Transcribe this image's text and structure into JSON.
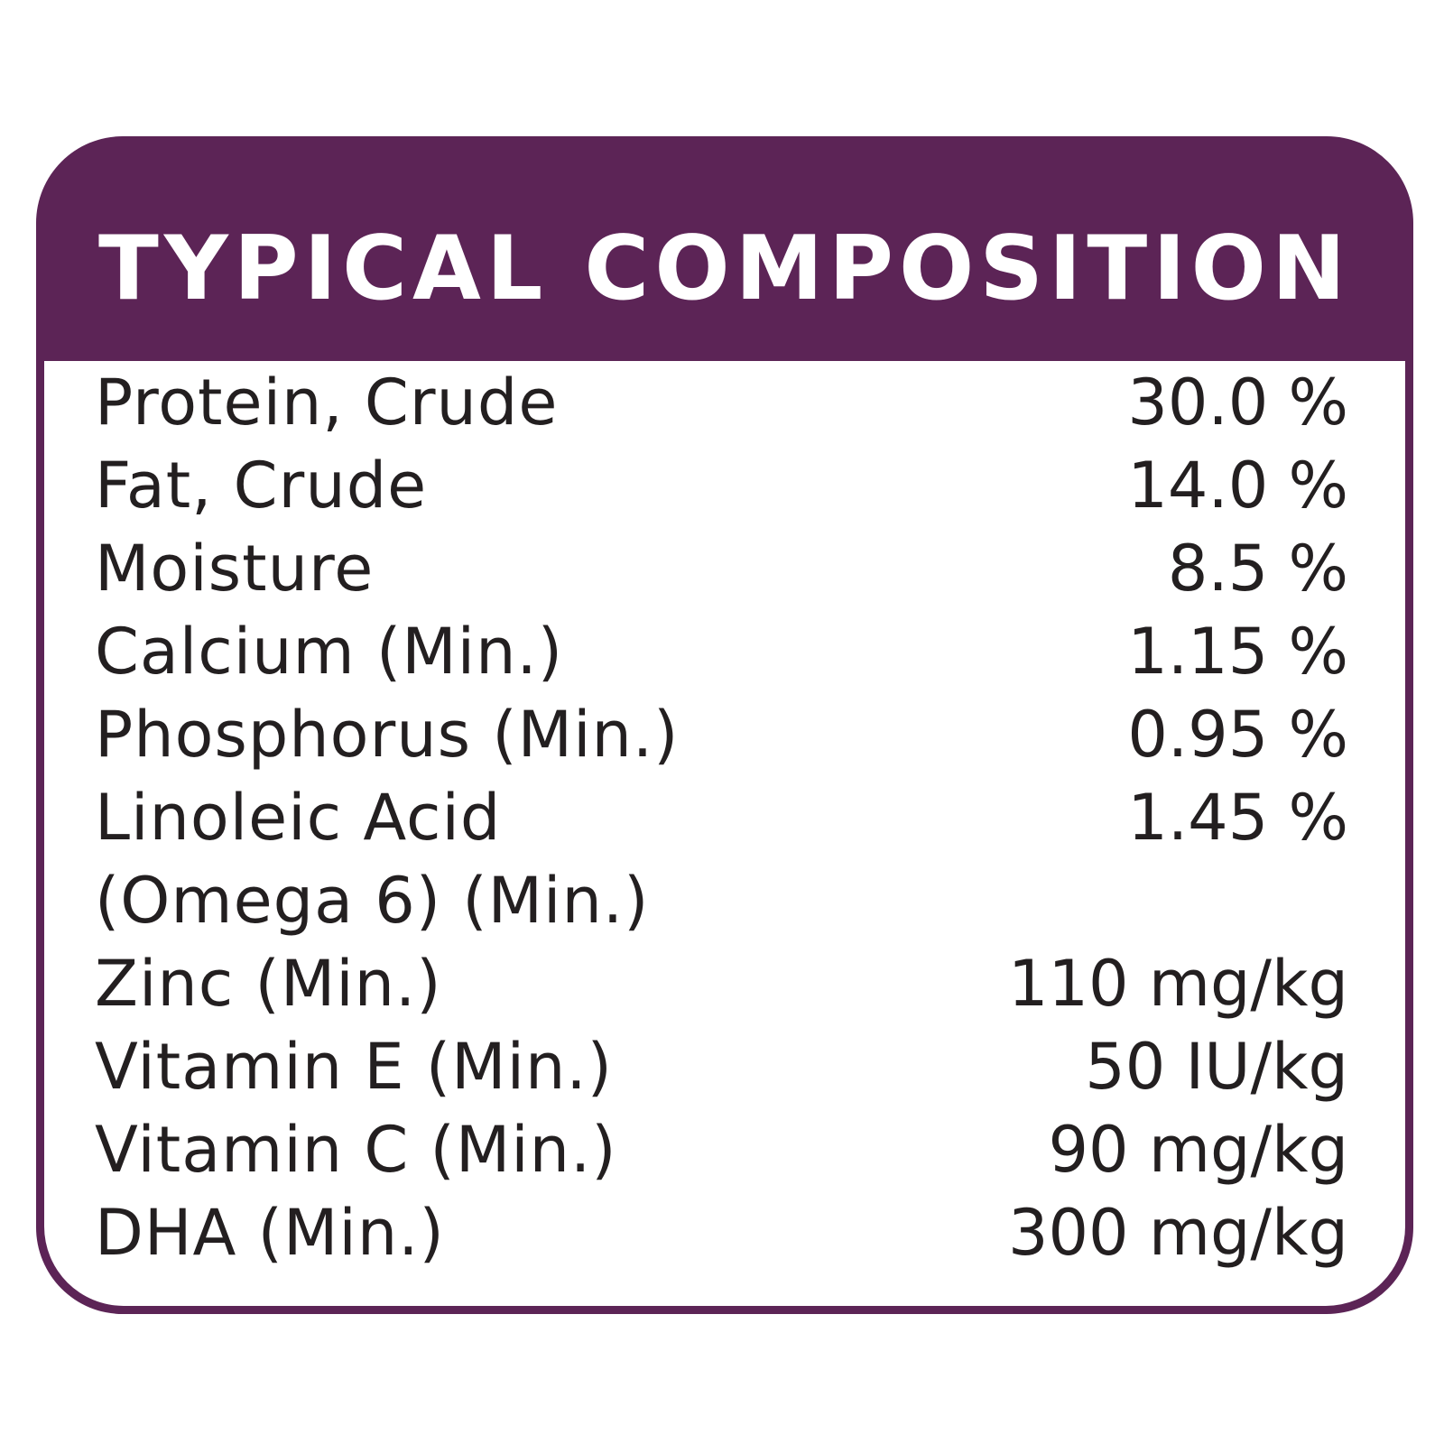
{
  "title": "TYPICAL COMPOSITION",
  "colors": {
    "frame": "#5c2456",
    "title_text": "#ffffff",
    "body_background": "#ffffff",
    "body_text": "#231f20"
  },
  "rows": [
    {
      "name": "Protein, Crude",
      "value": "30.0 %"
    },
    {
      "name": "Fat, Crude",
      "value": "14.0 %"
    },
    {
      "name": "Moisture",
      "value": "8.5 %"
    },
    {
      "name": "Calcium (Min.)",
      "value": "1.15 %"
    },
    {
      "name": "Phosphorus (Min.)",
      "value": "0.95 %"
    },
    {
      "name": "Linoleic Acid",
      "value": "1.45 %"
    },
    {
      "name": "(Omega 6) (Min.)",
      "value": ""
    },
    {
      "name": "Zinc (Min.)",
      "value": "110 mg/kg"
    },
    {
      "name": "Vitamin E (Min.)",
      "value": "50 IU/kg"
    },
    {
      "name": "Vitamin C (Min.)",
      "value": "90 mg/kg"
    },
    {
      "name": "DHA (Min.)",
      "value": "300 mg/kg"
    }
  ]
}
